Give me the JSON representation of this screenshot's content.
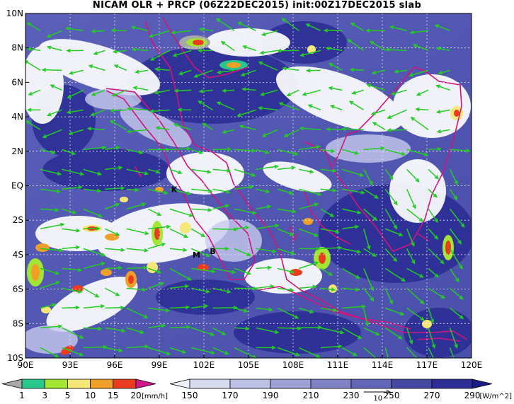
{
  "title": "NICAM OLR + PRCP (06Z22DEC2015) init:00Z17DEC2015 slab",
  "map": {
    "lon_range": [
      90,
      120
    ],
    "lat_range": [
      -10,
      10
    ],
    "x_ticks": [
      "90E",
      "93E",
      "96E",
      "99E",
      "102E",
      "105E",
      "108E",
      "111E",
      "114E",
      "117E",
      "120E"
    ],
    "y_ticks": [
      "10N",
      "8N",
      "6N",
      "4N",
      "2N",
      "EQ",
      "2S",
      "4S",
      "6S",
      "8S",
      "10S"
    ],
    "grid": true,
    "coastline_color": "#d0157a",
    "wind_vector_color": "#22cc22",
    "station_markers": [
      {
        "label": "K",
        "lon": 100.0,
        "lat": -0.2
      },
      {
        "label": "M",
        "lon": 101.5,
        "lat": -4.0
      },
      {
        "label": "B",
        "lon": 102.6,
        "lat": -3.8
      }
    ],
    "reference_vector": {
      "label": "10",
      "lon": 113.8,
      "lat": -12.3
    }
  },
  "legend_precip": {
    "ticks": [
      "1",
      "3",
      "5",
      "10",
      "15",
      "20"
    ],
    "unit": "[mm/h]",
    "colors": [
      "#a8a8a8",
      "#28c88c",
      "#a0e632",
      "#f5e678",
      "#f0a028",
      "#ea3c1e",
      "#d2168c"
    ]
  },
  "legend_olr": {
    "ticks": [
      "150",
      "170",
      "190",
      "210",
      "230",
      "250",
      "270",
      "290"
    ],
    "unit": "[W/m^2]",
    "colors": [
      "#eef0fa",
      "#d8dbf0",
      "#bcc0e4",
      "#9da1d6",
      "#7f83c6",
      "#6266b6",
      "#4649a4",
      "#2c2e96",
      "#1b1d86"
    ]
  }
}
